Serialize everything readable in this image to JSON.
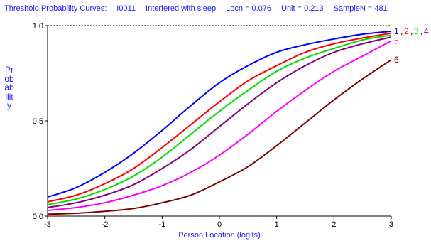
{
  "header": {
    "title": "Threshold Probability Curves:",
    "item": "I0011",
    "item_name": "Interfered with sleep",
    "locn": "Locn = 0.076",
    "unit": "Unit = 0.213",
    "sample": "SampleN = 481"
  },
  "chart_data": {
    "type": "line",
    "title": "Threshold Probability Curves:  I0011  Interfered with sleep",
    "xlabel": "Person Location (logits)",
    "ylabel": "Probability",
    "xlim": [
      -3,
      3
    ],
    "ylim": [
      0,
      1
    ],
    "x_ticks": [
      "-3",
      "-2",
      "-1",
      "0",
      "1",
      "2",
      "3"
    ],
    "y_ticks": [
      "0.0",
      "0.5",
      "1.0"
    ],
    "reference_line_y": 1.0,
    "x": [
      -3,
      -2.5,
      -2,
      -1.5,
      -1,
      -0.5,
      0,
      0.5,
      1,
      1.5,
      2,
      2.5,
      3
    ],
    "series": [
      {
        "label": "1",
        "color": "#0000ff",
        "values": [
          0.1,
          0.15,
          0.23,
          0.33,
          0.45,
          0.58,
          0.7,
          0.79,
          0.86,
          0.9,
          0.93,
          0.955,
          0.97
        ]
      },
      {
        "label": "2",
        "color": "#ff0000",
        "values": [
          0.075,
          0.11,
          0.17,
          0.25,
          0.36,
          0.48,
          0.6,
          0.71,
          0.79,
          0.86,
          0.905,
          0.935,
          0.96
        ]
      },
      {
        "label": "3",
        "color": "#00e000",
        "values": [
          0.06,
          0.09,
          0.14,
          0.21,
          0.31,
          0.43,
          0.55,
          0.66,
          0.76,
          0.83,
          0.88,
          0.925,
          0.95
        ]
      },
      {
        "label": "4",
        "color": "#800080",
        "values": [
          0.045,
          0.07,
          0.11,
          0.165,
          0.25,
          0.35,
          0.47,
          0.59,
          0.7,
          0.79,
          0.86,
          0.905,
          0.94
        ]
      },
      {
        "label": "5",
        "color": "#ff00ff",
        "values": [
          0.03,
          0.045,
          0.07,
          0.11,
          0.16,
          0.23,
          0.32,
          0.43,
          0.55,
          0.66,
          0.76,
          0.84,
          0.92
        ]
      },
      {
        "label": "6",
        "color": "#800000",
        "values": [
          0.01,
          0.015,
          0.025,
          0.04,
          0.07,
          0.11,
          0.18,
          0.26,
          0.37,
          0.49,
          0.61,
          0.72,
          0.82
        ]
      }
    ],
    "grid": false,
    "legend": "right of curves, labels at x = 3"
  }
}
